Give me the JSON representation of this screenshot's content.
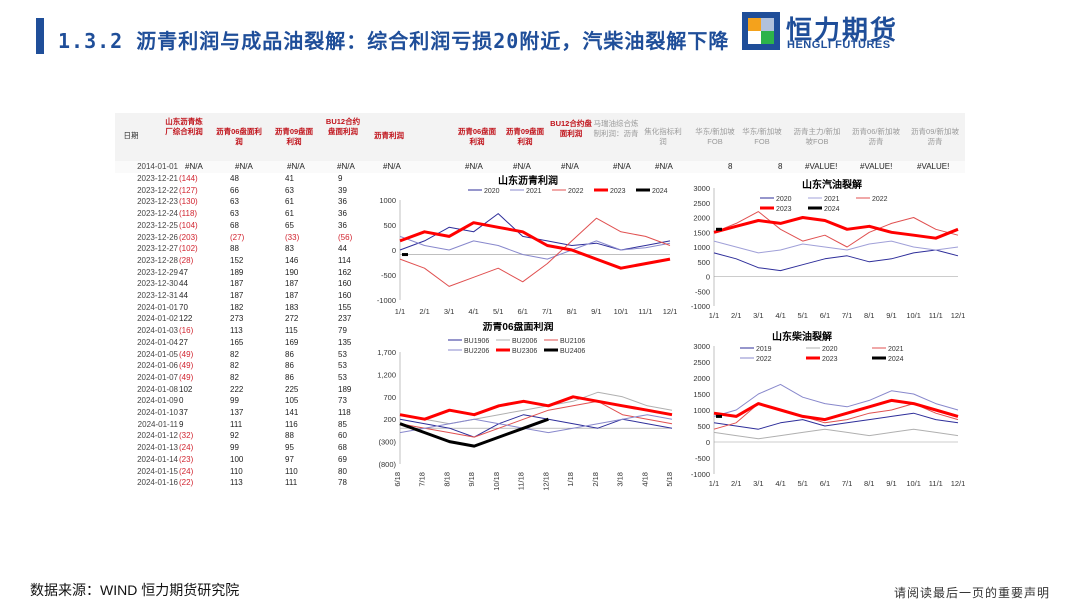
{
  "header": {
    "title": "1.3.2 沥青利润与成品油裂解：综合利润亏损20附近，汽柴油裂解下降",
    "logo_cn": "恒力期货",
    "logo_en": "HENGLI FUTURES"
  },
  "table": {
    "headers": [
      "日期",
      "山东沥青炼厂综合利润",
      "沥青06盘面利润",
      "沥青09盘面利润",
      "BU12合约盘面利润",
      "沥青利润",
      "沥青06盘面利润",
      "沥青09盘面利润",
      "BU12合约盘面利润",
      "马瑞油综合炼制利润：沥青",
      "焦化指标利润",
      "华东/新加坡FOB",
      "华东/新加坡FOB",
      "沥青主力/新加坡FOB",
      "沥青06/新加坡沥青",
      "沥青09/新加坡沥青"
    ],
    "na_row": {
      "date": "2014-01-01",
      "values": [
        "#N/A",
        "#N/A",
        "#N/A",
        "#N/A",
        "#N/A",
        "#N/A",
        "#N/A",
        "#N/A",
        "#N/A",
        "#N/A",
        "8",
        "8",
        "#VALUE!",
        "#VALUE!",
        "#VALUE!"
      ]
    },
    "rows": [
      {
        "date": "2023-12-21",
        "v": [
          "(144)",
          "48",
          "41",
          "9"
        ]
      },
      {
        "date": "2023-12-22",
        "v": [
          "(127)",
          "66",
          "63",
          "39"
        ]
      },
      {
        "date": "2023-12-23",
        "v": [
          "(130)",
          "63",
          "61",
          "36"
        ]
      },
      {
        "date": "2023-12-24",
        "v": [
          "(118)",
          "63",
          "61",
          "36"
        ]
      },
      {
        "date": "2023-12-25",
        "v": [
          "(104)",
          "68",
          "65",
          "36"
        ]
      },
      {
        "date": "2023-12-26",
        "v": [
          "(203)",
          "(27)",
          "(33)",
          "(56)"
        ]
      },
      {
        "date": "2023-12-27",
        "v": [
          "(102)",
          "88",
          "83",
          "44"
        ]
      },
      {
        "date": "2023-12-28",
        "v": [
          "(28)",
          "152",
          "146",
          "114"
        ]
      },
      {
        "date": "2023-12-29",
        "v": [
          "47",
          "189",
          "190",
          "162"
        ]
      },
      {
        "date": "2023-12-30",
        "v": [
          "44",
          "187",
          "187",
          "160"
        ]
      },
      {
        "date": "2023-12-31",
        "v": [
          "44",
          "187",
          "187",
          "160"
        ]
      },
      {
        "date": "2024-01-01",
        "v": [
          "70",
          "182",
          "183",
          "155"
        ]
      },
      {
        "date": "2024-01-02",
        "v": [
          "122",
          "273",
          "272",
          "237"
        ]
      },
      {
        "date": "2024-01-03",
        "v": [
          "(16)",
          "113",
          "115",
          "79"
        ]
      },
      {
        "date": "2024-01-04",
        "v": [
          "27",
          "165",
          "169",
          "135"
        ]
      },
      {
        "date": "2024-01-05",
        "v": [
          "(49)",
          "82",
          "86",
          "53"
        ]
      },
      {
        "date": "2024-01-06",
        "v": [
          "(49)",
          "82",
          "86",
          "53"
        ]
      },
      {
        "date": "2024-01-07",
        "v": [
          "(49)",
          "82",
          "86",
          "53"
        ]
      },
      {
        "date": "2024-01-08",
        "v": [
          "102",
          "222",
          "225",
          "189"
        ]
      },
      {
        "date": "2024-01-09",
        "v": [
          "0",
          "99",
          "105",
          "73"
        ]
      },
      {
        "date": "2024-01-10",
        "v": [
          "37",
          "137",
          "141",
          "118"
        ]
      },
      {
        "date": "2024-01-11",
        "v": [
          "9",
          "111",
          "116",
          "85"
        ]
      },
      {
        "date": "2024-01-12",
        "v": [
          "(32)",
          "92",
          "88",
          "60"
        ]
      },
      {
        "date": "2024-01-13",
        "v": [
          "(24)",
          "99",
          "95",
          "68"
        ]
      },
      {
        "date": "2024-01-14",
        "v": [
          "(23)",
          "100",
          "97",
          "69"
        ]
      },
      {
        "date": "2024-01-15",
        "v": [
          "(24)",
          "110",
          "110",
          "80"
        ]
      },
      {
        "date": "2024-01-16",
        "v": [
          "(22)",
          "113",
          "111",
          "78"
        ]
      }
    ]
  },
  "chart_data": [
    {
      "type": "line",
      "title": "山东沥青利润",
      "x_ticks": [
        "1/1",
        "2/1",
        "3/1",
        "4/1",
        "5/1",
        "6/1",
        "7/1",
        "8/1",
        "9/1",
        "10/1",
        "11/1",
        "12/1"
      ],
      "y_ticks": [
        "1000",
        "500",
        "0",
        "-500",
        "-1000"
      ],
      "ylim": [
        -1000,
        1200
      ],
      "series": [
        {
          "name": "2020",
          "color": "#2e2e9a",
          "width": 1,
          "values": [
            100,
            300,
            600,
            500,
            900,
            400,
            300,
            200,
            250,
            100,
            200,
            300
          ]
        },
        {
          "name": "2021",
          "color": "#8888cc",
          "width": 1,
          "values": [
            400,
            200,
            100,
            300,
            200,
            0,
            -100,
            100,
            300,
            100,
            150,
            250
          ]
        },
        {
          "name": "2022",
          "color": "#e05050",
          "width": 1,
          "values": [
            -100,
            -300,
            -700,
            -500,
            -300,
            -600,
            -200,
            300,
            800,
            500,
            400,
            200
          ]
        },
        {
          "name": "2023",
          "color": "#ff0000",
          "width": 3,
          "values": [
            300,
            500,
            400,
            700,
            600,
            500,
            200,
            100,
            -100,
            -300,
            -200,
            -100
          ]
        },
        {
          "name": "2024",
          "color": "#000000",
          "width": 3,
          "values": [
            0
          ]
        }
      ]
    },
    {
      "type": "line",
      "title": "山东汽油裂解",
      "x_ticks": [
        "1/1",
        "2/1",
        "3/1",
        "4/1",
        "5/1",
        "6/1",
        "7/1",
        "8/1",
        "9/1",
        "10/1",
        "11/1",
        "12/1"
      ],
      "y_ticks": [
        "3000",
        "2500",
        "2000",
        "1500",
        "1000",
        "500",
        "0",
        "-500",
        "-1000"
      ],
      "ylim": [
        -1000,
        3000
      ],
      "series": [
        {
          "name": "2020",
          "color": "#2e2e9a",
          "width": 1,
          "values": [
            800,
            600,
            300,
            200,
            400,
            600,
            700,
            500,
            600,
            800,
            900,
            700
          ]
        },
        {
          "name": "2021",
          "color": "#a0a0d8",
          "width": 1,
          "values": [
            1200,
            1000,
            800,
            900,
            1100,
            1000,
            900,
            1100,
            1200,
            1000,
            900,
            1000
          ]
        },
        {
          "name": "2022",
          "color": "#e05050",
          "width": 1,
          "values": [
            1500,
            1800,
            2200,
            1600,
            1200,
            1400,
            1000,
            1500,
            1800,
            2000,
            1600,
            1400
          ]
        },
        {
          "name": "2023",
          "color": "#ff0000",
          "width": 3,
          "values": [
            1500,
            1700,
            1900,
            1800,
            2000,
            1900,
            1600,
            1700,
            1500,
            1400,
            1300,
            1600
          ]
        },
        {
          "name": "2024",
          "color": "#000000",
          "width": 3,
          "values": [
            1600
          ]
        }
      ]
    },
    {
      "type": "line",
      "title": "沥青06盘面利润",
      "x_ticks": [
        "6/18",
        "7/18",
        "8/18",
        "9/18",
        "10/18",
        "11/18",
        "12/18",
        "1/18",
        "2/18",
        "3/18",
        "4/18",
        "5/18"
      ],
      "y_ticks": [
        "1,700",
        "1,200",
        "700",
        "200",
        "(300)",
        "(800)"
      ],
      "ylim": [
        -800,
        1700
      ],
      "series": [
        {
          "name": "BU1906",
          "color": "#2e2e9a",
          "width": 1,
          "values": [
            200,
            100,
            0,
            -200,
            100,
            300,
            200,
            100,
            0,
            200,
            100,
            0
          ]
        },
        {
          "name": "BU2006",
          "color": "#b0b0b0",
          "width": 1,
          "values": [
            300,
            200,
            100,
            200,
            300,
            400,
            500,
            600,
            800,
            700,
            500,
            400
          ]
        },
        {
          "name": "BU2106",
          "color": "#e05050",
          "width": 1,
          "values": [
            100,
            0,
            -100,
            -200,
            0,
            200,
            400,
            500,
            600,
            300,
            200,
            100
          ]
        },
        {
          "name": "BU2206",
          "color": "#8888cc",
          "width": 1,
          "values": [
            -100,
            0,
            100,
            200,
            100,
            0,
            -100,
            0,
            100,
            200,
            300,
            200
          ]
        },
        {
          "name": "BU2306",
          "color": "#ff0000",
          "width": 3,
          "values": [
            300,
            200,
            400,
            300,
            500,
            600,
            500,
            700,
            600,
            500,
            400,
            300
          ]
        },
        {
          "name": "BU2406",
          "color": "#000000",
          "width": 3,
          "values": [
            100,
            -100,
            -300,
            -400,
            -200,
            0,
            200
          ]
        }
      ]
    },
    {
      "type": "line",
      "title": "山东柴油裂解",
      "x_ticks": [
        "1/1",
        "2/1",
        "3/1",
        "4/1",
        "5/1",
        "6/1",
        "7/1",
        "8/1",
        "9/1",
        "10/1",
        "11/1",
        "12/1"
      ],
      "y_ticks": [
        "3000",
        "2500",
        "2000",
        "1500",
        "1000",
        "500",
        "0",
        "-500",
        "-1000"
      ],
      "ylim": [
        -1000,
        3000
      ],
      "series": [
        {
          "name": "2019",
          "color": "#2e2e9a",
          "width": 1,
          "values": [
            600,
            500,
            400,
            600,
            700,
            500,
            600,
            700,
            800,
            900,
            700,
            600
          ]
        },
        {
          "name": "2020",
          "color": "#b0b0b0",
          "width": 1,
          "values": [
            300,
            200,
            100,
            200,
            300,
            400,
            300,
            200,
            300,
            400,
            300,
            200
          ]
        },
        {
          "name": "2021",
          "color": "#e05050",
          "width": 1,
          "values": [
            400,
            600,
            1200,
            1000,
            800,
            600,
            700,
            900,
            1000,
            1200,
            900,
            700
          ]
        },
        {
          "name": "2022",
          "color": "#8888cc",
          "width": 1,
          "values": [
            800,
            1000,
            1500,
            1800,
            1400,
            1200,
            1100,
            1300,
            1600,
            1500,
            1200,
            1000
          ]
        },
        {
          "name": "2023",
          "color": "#ff0000",
          "width": 3,
          "values": [
            900,
            800,
            1200,
            1000,
            800,
            700,
            900,
            1100,
            1300,
            1200,
            1000,
            800
          ]
        },
        {
          "name": "2024",
          "color": "#000000",
          "width": 3,
          "values": [
            800
          ]
        }
      ]
    }
  ],
  "footer": {
    "source": "数据来源：WIND 恒力期货研究院",
    "disclaimer": "请阅读最后一页的重要声明"
  }
}
